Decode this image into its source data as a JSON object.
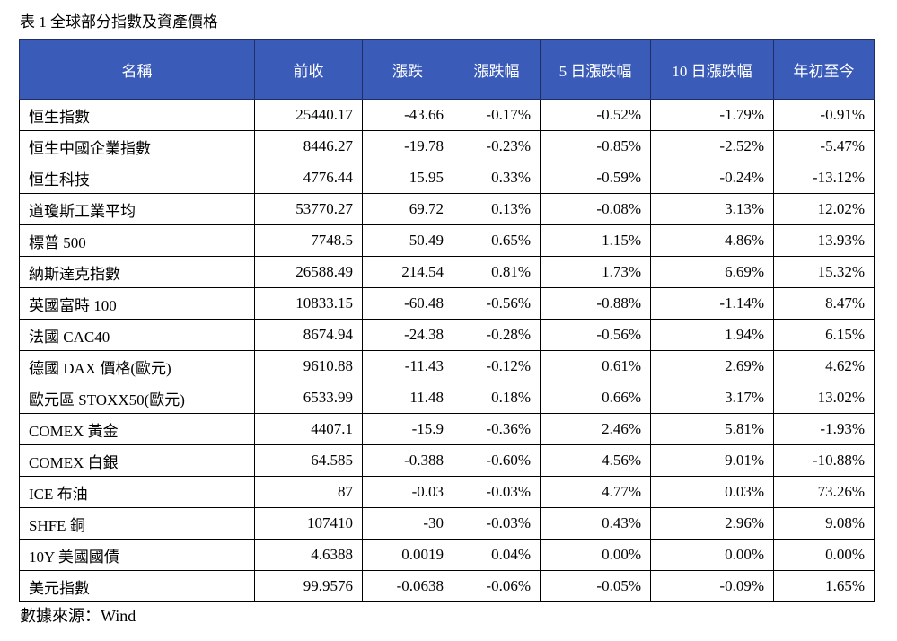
{
  "caption": "表 1 全球部分指數及資產價格",
  "headers": [
    "名稱",
    "前收",
    "漲跌",
    "漲跌幅",
    "5 日漲跌幅",
    "10 日漲跌幅",
    "年初至今"
  ],
  "rows": [
    [
      "恒生指數",
      "25440.17",
      "-43.66",
      "-0.17%",
      "-0.52%",
      "-1.79%",
      "-0.91%"
    ],
    [
      "恒生中國企業指數",
      "8446.27",
      "-19.78",
      "-0.23%",
      "-0.85%",
      "-2.52%",
      "-5.47%"
    ],
    [
      "恒生科技",
      "4776.44",
      "15.95",
      "0.33%",
      "-0.59%",
      "-0.24%",
      "-13.12%"
    ],
    [
      "道瓊斯工業平均",
      "53770.27",
      "69.72",
      "0.13%",
      "-0.08%",
      "3.13%",
      "12.02%"
    ],
    [
      "標普 500",
      "7748.5",
      "50.49",
      "0.65%",
      "1.15%",
      "4.86%",
      "13.93%"
    ],
    [
      "納斯達克指數",
      "26588.49",
      "214.54",
      "0.81%",
      "1.73%",
      "6.69%",
      "15.32%"
    ],
    [
      "英國富時 100",
      "10833.15",
      "-60.48",
      "-0.56%",
      "-0.88%",
      "-1.14%",
      "8.47%"
    ],
    [
      "法國 CAC40",
      "8674.94",
      "-24.38",
      "-0.28%",
      "-0.56%",
      "1.94%",
      "6.15%"
    ],
    [
      "德國 DAX 價格(歐元)",
      "9610.88",
      "-11.43",
      "-0.12%",
      "0.61%",
      "2.69%",
      "4.62%"
    ],
    [
      "歐元區 STOXX50(歐元)",
      "6533.99",
      "11.48",
      "0.18%",
      "0.66%",
      "3.17%",
      "13.02%"
    ],
    [
      "COMEX 黃金",
      "4407.1",
      "-15.9",
      "-0.36%",
      "2.46%",
      "5.81%",
      "-1.93%"
    ],
    [
      "COMEX 白銀",
      "64.585",
      "-0.388",
      "-0.60%",
      "4.56%",
      "9.01%",
      "-10.88%"
    ],
    [
      "ICE 布油",
      "87",
      "-0.03",
      "-0.03%",
      "4.77%",
      "0.03%",
      "73.26%"
    ],
    [
      "SHFE 銅",
      "107410",
      "-30",
      "-0.03%",
      "0.43%",
      "2.96%",
      "9.08%"
    ],
    [
      "10Y  美國國債",
      "4.6388",
      "0.0019",
      "0.04%",
      "0.00%",
      "0.00%",
      "0.00%"
    ],
    [
      "美元指數",
      "99.9576",
      "-0.0638",
      "-0.06%",
      "-0.05%",
      "-0.09%",
      "1.65%"
    ]
  ],
  "source": "數據來源：Wind",
  "colors": {
    "header_bg": "#3a5cb8",
    "header_text": "#ffffff"
  }
}
